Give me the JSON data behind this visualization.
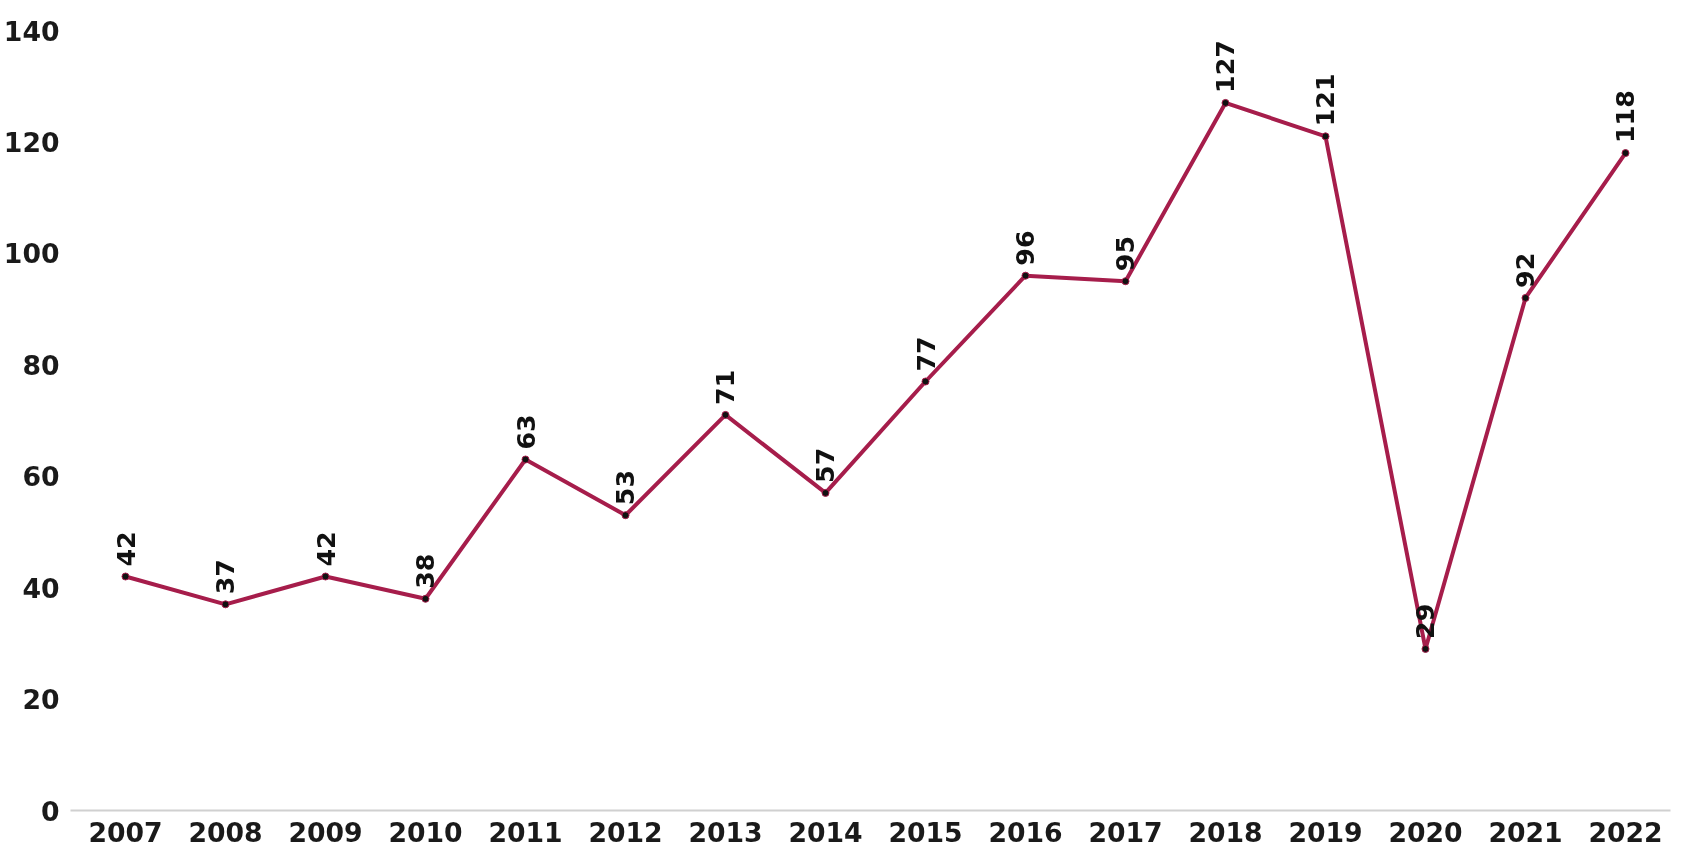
{
  "chart_data": {
    "type": "line",
    "categories": [
      "2007",
      "2008",
      "2009",
      "2010",
      "2011",
      "2012",
      "2013",
      "2014",
      "2015",
      "2016",
      "2017",
      "2018",
      "2019",
      "2020",
      "2021",
      "2022"
    ],
    "series": [
      {
        "color": "#a61d4b",
        "values": [
          42,
          37,
          42,
          38,
          63,
          53,
          71,
          57,
          77,
          96,
          95,
          127,
          121,
          29,
          92,
          118
        ]
      }
    ],
    "ylim": [
      0,
      140
    ],
    "yticks": [
      0,
      20,
      40,
      60,
      80,
      100,
      120,
      140
    ],
    "grid": false,
    "marker": "circle",
    "line_style": "solid",
    "data_labels": true
  }
}
